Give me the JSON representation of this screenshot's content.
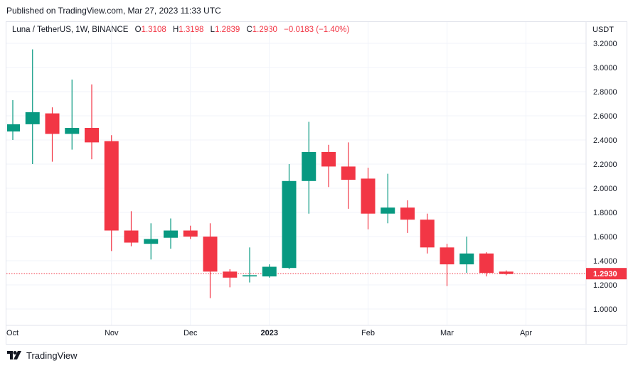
{
  "header": {
    "published": "Published on TradingView.com, Mar 27, 2023 11:33 UTC"
  },
  "legend": {
    "symbol": "Luna / TetherUS, 1W, BINANCE",
    "o_label": "O",
    "o_value": "1.3108",
    "h_label": "H",
    "h_value": "1.3198",
    "l_label": "L",
    "l_value": "1.2839",
    "c_label": "C",
    "c_value": "1.2930",
    "change": "−0.0183 (−1.40%)"
  },
  "footer": {
    "brand": "TradingView"
  },
  "colors": {
    "up": "#089981",
    "down": "#f23645",
    "grid": "#f0f3fa",
    "text": "#131722",
    "last_price_bg": "#f23645"
  },
  "chart_data": {
    "type": "candlestick",
    "interval": "1W",
    "currency_label": "USDT",
    "y_ticks": [
      "3.2000",
      "3.0000",
      "2.8000",
      "2.6000",
      "2.4000",
      "2.2000",
      "2.0000",
      "1.8000",
      "1.6000",
      "1.4000",
      "1.2000",
      "1.0000"
    ],
    "x_ticks": [
      "Oct",
      "Nov",
      "Dec",
      "2023",
      "Feb",
      "Mar",
      "Apr"
    ],
    "last_price": "1.2930",
    "candles": [
      {
        "o": 2.47,
        "h": 2.73,
        "l": 2.4,
        "c": 2.53
      },
      {
        "o": 2.53,
        "h": 3.15,
        "l": 2.2,
        "c": 2.63
      },
      {
        "o": 2.62,
        "h": 2.67,
        "l": 2.22,
        "c": 2.45
      },
      {
        "o": 2.45,
        "h": 2.9,
        "l": 2.32,
        "c": 2.5
      },
      {
        "o": 2.5,
        "h": 2.86,
        "l": 2.24,
        "c": 2.38
      },
      {
        "o": 2.39,
        "h": 2.44,
        "l": 1.48,
        "c": 1.65
      },
      {
        "o": 1.65,
        "h": 1.81,
        "l": 1.52,
        "c": 1.55
      },
      {
        "o": 1.54,
        "h": 1.71,
        "l": 1.41,
        "c": 1.58
      },
      {
        "o": 1.59,
        "h": 1.75,
        "l": 1.5,
        "c": 1.65
      },
      {
        "o": 1.65,
        "h": 1.69,
        "l": 1.58,
        "c": 1.6
      },
      {
        "o": 1.6,
        "h": 1.71,
        "l": 1.09,
        "c": 1.31
      },
      {
        "o": 1.31,
        "h": 1.33,
        "l": 1.18,
        "c": 1.26
      },
      {
        "o": 1.27,
        "h": 1.51,
        "l": 1.22,
        "c": 1.28
      },
      {
        "o": 1.27,
        "h": 1.37,
        "l": 1.26,
        "c": 1.35
      },
      {
        "o": 1.34,
        "h": 2.2,
        "l": 1.33,
        "c": 2.06
      },
      {
        "o": 2.06,
        "h": 2.55,
        "l": 1.79,
        "c": 2.3
      },
      {
        "o": 2.3,
        "h": 2.36,
        "l": 2.01,
        "c": 2.18
      },
      {
        "o": 2.18,
        "h": 2.38,
        "l": 1.83,
        "c": 2.07
      },
      {
        "o": 2.08,
        "h": 2.17,
        "l": 1.66,
        "c": 1.79
      },
      {
        "o": 1.79,
        "h": 2.12,
        "l": 1.71,
        "c": 1.84
      },
      {
        "o": 1.84,
        "h": 1.9,
        "l": 1.63,
        "c": 1.74
      },
      {
        "o": 1.74,
        "h": 1.79,
        "l": 1.46,
        "c": 1.51
      },
      {
        "o": 1.51,
        "h": 1.54,
        "l": 1.19,
        "c": 1.37
      },
      {
        "o": 1.37,
        "h": 1.6,
        "l": 1.3,
        "c": 1.46
      },
      {
        "o": 1.46,
        "h": 1.47,
        "l": 1.27,
        "c": 1.3
      },
      {
        "o": 1.31,
        "h": 1.32,
        "l": 1.28,
        "c": 1.29
      }
    ]
  }
}
